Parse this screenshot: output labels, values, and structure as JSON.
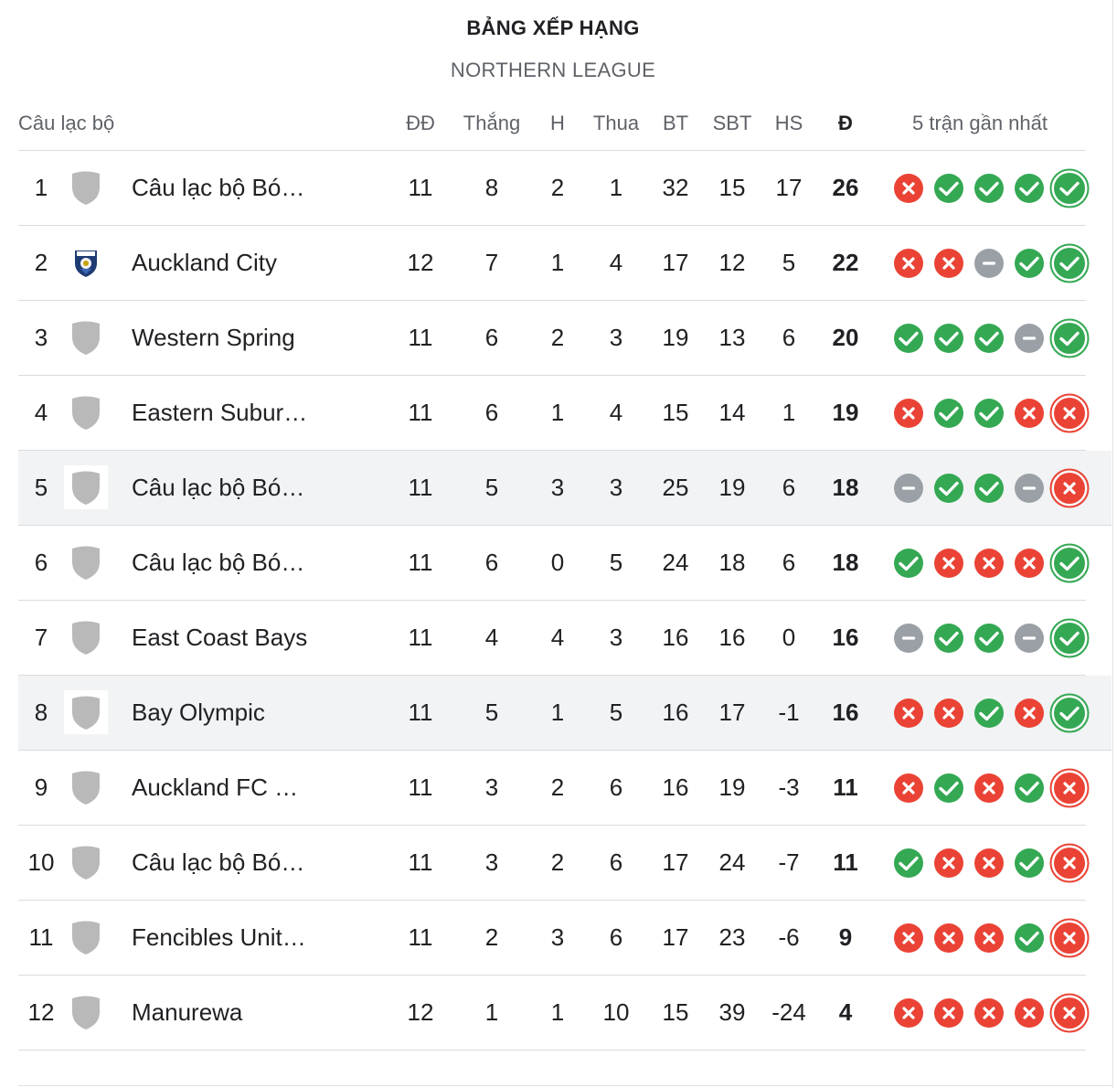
{
  "title": "BẢNG XẾP HẠNG",
  "subtitle": "NORTHERN LEAGUE",
  "headers": {
    "club": "Câu lạc bộ",
    "played": "ĐĐ",
    "won": "Thắng",
    "drawn": "H",
    "lost": "Thua",
    "gf": "BT",
    "ga": "SBT",
    "gd": "HS",
    "points": "Đ",
    "form": "5 trận gần nhất"
  },
  "colors": {
    "win": "#34a853",
    "loss": "#ea4335",
    "draw": "#9aa0a6",
    "crest": "#b9b9b9"
  },
  "rows": [
    {
      "rank": "1",
      "team": "Câu lạc bộ Bó…",
      "crest": "shield-icon",
      "played": "11",
      "won": "8",
      "drawn": "2",
      "lost": "1",
      "gf": "32",
      "ga": "15",
      "gd": "17",
      "points": "26",
      "form": [
        "L",
        "W",
        "W",
        "W",
        "W"
      ],
      "highlight": false
    },
    {
      "rank": "2",
      "team": "Auckland City",
      "crest": "auckland-city-crest-icon",
      "played": "12",
      "won": "7",
      "drawn": "1",
      "lost": "4",
      "gf": "17",
      "ga": "12",
      "gd": "5",
      "points": "22",
      "form": [
        "L",
        "L",
        "D",
        "W",
        "W"
      ],
      "highlight": false
    },
    {
      "rank": "3",
      "team": "Western Spring",
      "crest": "shield-icon",
      "played": "11",
      "won": "6",
      "drawn": "2",
      "lost": "3",
      "gf": "19",
      "ga": "13",
      "gd": "6",
      "points": "20",
      "form": [
        "W",
        "W",
        "W",
        "D",
        "W"
      ],
      "highlight": false
    },
    {
      "rank": "4",
      "team": "Eastern Subur…",
      "crest": "shield-icon",
      "played": "11",
      "won": "6",
      "drawn": "1",
      "lost": "4",
      "gf": "15",
      "ga": "14",
      "gd": "1",
      "points": "19",
      "form": [
        "L",
        "W",
        "W",
        "L",
        "L"
      ],
      "highlight": false
    },
    {
      "rank": "5",
      "team": "Câu lạc bộ Bó…",
      "crest": "shield-icon",
      "played": "11",
      "won": "5",
      "drawn": "3",
      "lost": "3",
      "gf": "25",
      "ga": "19",
      "gd": "6",
      "points": "18",
      "form": [
        "D",
        "W",
        "W",
        "D",
        "L"
      ],
      "highlight": true
    },
    {
      "rank": "6",
      "team": "Câu lạc bộ Bó…",
      "crest": "shield-icon",
      "played": "11",
      "won": "6",
      "drawn": "0",
      "lost": "5",
      "gf": "24",
      "ga": "18",
      "gd": "6",
      "points": "18",
      "form": [
        "W",
        "L",
        "L",
        "L",
        "W"
      ],
      "highlight": false
    },
    {
      "rank": "7",
      "team": "East Coast Bays",
      "crest": "shield-icon",
      "played": "11",
      "won": "4",
      "drawn": "4",
      "lost": "3",
      "gf": "16",
      "ga": "16",
      "gd": "0",
      "points": "16",
      "form": [
        "D",
        "W",
        "W",
        "D",
        "W"
      ],
      "highlight": false
    },
    {
      "rank": "8",
      "team": "Bay Olympic",
      "crest": "shield-icon",
      "played": "11",
      "won": "5",
      "drawn": "1",
      "lost": "5",
      "gf": "16",
      "ga": "17",
      "gd": "-1",
      "points": "16",
      "form": [
        "L",
        "L",
        "W",
        "L",
        "W"
      ],
      "highlight": true
    },
    {
      "rank": "9",
      "team": "Auckland FC …",
      "crest": "shield-icon",
      "played": "11",
      "won": "3",
      "drawn": "2",
      "lost": "6",
      "gf": "16",
      "ga": "19",
      "gd": "-3",
      "points": "11",
      "form": [
        "L",
        "W",
        "L",
        "W",
        "L"
      ],
      "highlight": false
    },
    {
      "rank": "10",
      "team": "Câu lạc bộ Bó…",
      "crest": "shield-icon",
      "played": "11",
      "won": "3",
      "drawn": "2",
      "lost": "6",
      "gf": "17",
      "ga": "24",
      "gd": "-7",
      "points": "11",
      "form": [
        "W",
        "L",
        "L",
        "W",
        "L"
      ],
      "highlight": false
    },
    {
      "rank": "11",
      "team": "Fencibles Unit…",
      "crest": "shield-icon",
      "played": "11",
      "won": "2",
      "drawn": "3",
      "lost": "6",
      "gf": "17",
      "ga": "23",
      "gd": "-6",
      "points": "9",
      "form": [
        "L",
        "L",
        "L",
        "W",
        "L"
      ],
      "highlight": false
    },
    {
      "rank": "12",
      "team": "Manurewa",
      "crest": "shield-icon",
      "played": "12",
      "won": "1",
      "drawn": "1",
      "lost": "10",
      "gf": "15",
      "ga": "39",
      "gd": "-24",
      "points": "4",
      "form": [
        "L",
        "L",
        "L",
        "L",
        "L"
      ],
      "highlight": false
    }
  ]
}
